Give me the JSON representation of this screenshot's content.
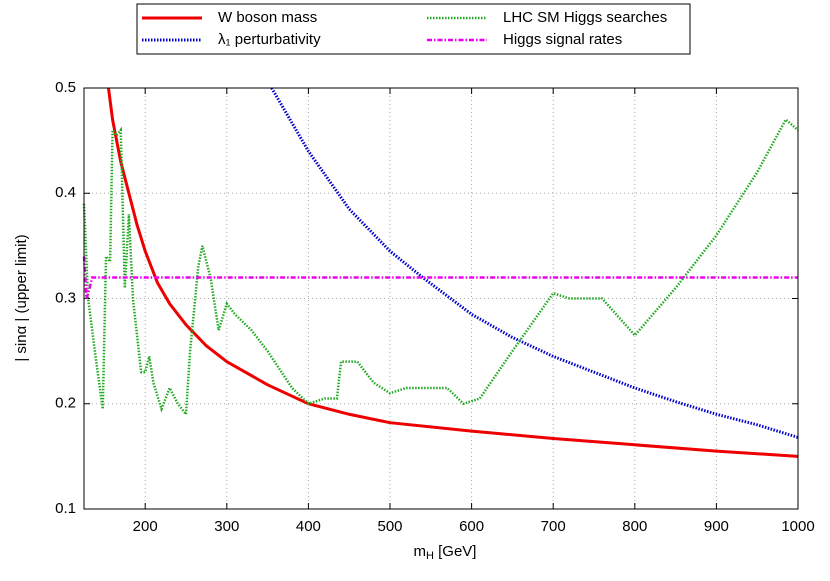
{
  "chart_data": {
    "type": "line",
    "x_label": [
      "m",
      "H",
      " [GeV]"
    ],
    "y_label": "| sinα |  (upper limit)",
    "xlim": [
      125,
      1000
    ],
    "ylim": [
      0.1,
      0.5
    ],
    "xticks": [
      200,
      300,
      400,
      500,
      600,
      700,
      800,
      900,
      1000
    ],
    "yticks": [
      0.1,
      0.2,
      0.3,
      0.4,
      0.5
    ],
    "grid": true,
    "series": [
      {
        "name": "W boson mass",
        "color": "#ee0000",
        "x": [
          155,
          160,
          170,
          180,
          190,
          200,
          215,
          230,
          250,
          275,
          300,
          350,
          400,
          450,
          500,
          600,
          700,
          800,
          900,
          1000
        ],
        "values": [
          0.5,
          0.47,
          0.43,
          0.4,
          0.37,
          0.345,
          0.315,
          0.295,
          0.275,
          0.255,
          0.24,
          0.218,
          0.2,
          0.19,
          0.182,
          0.174,
          0.167,
          0.161,
          0.155,
          0.15
        ]
      },
      {
        "name": "λ₁ perturbativity",
        "color": "#0000cc",
        "x": [
          355,
          400,
          450,
          500,
          540,
          600,
          650,
          700,
          750,
          800,
          850,
          900,
          950,
          1000
        ],
        "values": [
          0.5,
          0.44,
          0.385,
          0.345,
          0.32,
          0.285,
          0.263,
          0.245,
          0.23,
          0.215,
          0.202,
          0.19,
          0.18,
          0.168
        ]
      },
      {
        "name": "LHC SM Higgs searches",
        "color": "#22aa22",
        "x": [
          125,
          130,
          140,
          148,
          152,
          157,
          160,
          165,
          170,
          175,
          180,
          185,
          195,
          200,
          205,
          210,
          220,
          230,
          240,
          250,
          255,
          265,
          270,
          280,
          290,
          300,
          310,
          330,
          350,
          380,
          400,
          420,
          435,
          440,
          460,
          480,
          500,
          520,
          570,
          590,
          610,
          650,
          700,
          720,
          760,
          800,
          850,
          900,
          950,
          985,
          1000
        ],
        "values": [
          0.39,
          0.3,
          0.24,
          0.195,
          0.34,
          0.335,
          0.46,
          0.455,
          0.46,
          0.31,
          0.38,
          0.3,
          0.23,
          0.23,
          0.245,
          0.22,
          0.195,
          0.215,
          0.2,
          0.19,
          0.25,
          0.33,
          0.35,
          0.32,
          0.27,
          0.295,
          0.285,
          0.27,
          0.25,
          0.215,
          0.2,
          0.205,
          0.205,
          0.24,
          0.24,
          0.22,
          0.21,
          0.215,
          0.215,
          0.2,
          0.205,
          0.25,
          0.305,
          0.3,
          0.3,
          0.265,
          0.31,
          0.36,
          0.42,
          0.47,
          0.46
        ]
      },
      {
        "name": "Higgs signal rates",
        "color": "#ee00ee",
        "x": [
          125,
          128,
          132,
          135,
          1000
        ],
        "values": [
          0.34,
          0.3,
          0.31,
          0.32,
          0.32
        ]
      }
    ]
  }
}
